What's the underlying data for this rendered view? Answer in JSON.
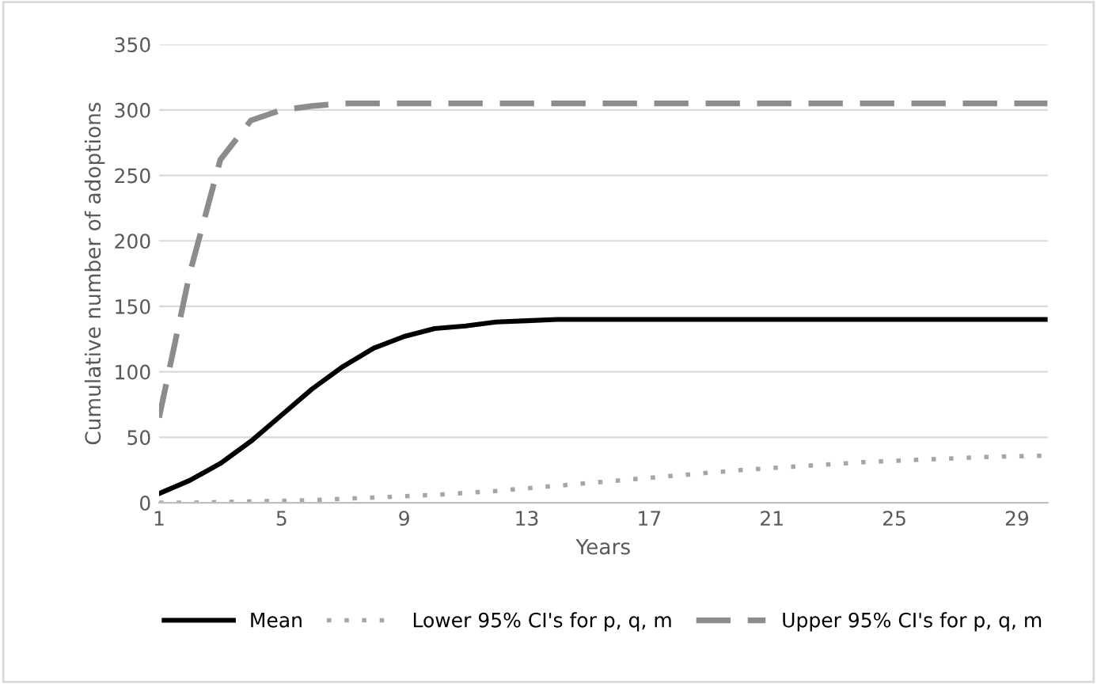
{
  "chart_data": {
    "type": "line",
    "xlabel": "Years",
    "ylabel": "Cumulative number of adoptions",
    "x": [
      1,
      2,
      3,
      4,
      5,
      6,
      7,
      8,
      9,
      10,
      11,
      12,
      13,
      14,
      15,
      16,
      17,
      18,
      19,
      20,
      21,
      22,
      23,
      24,
      25,
      26,
      27,
      28,
      29,
      30
    ],
    "xlim": [
      1,
      30
    ],
    "xticks": [
      1,
      5,
      9,
      13,
      17,
      21,
      25,
      29
    ],
    "ylim": [
      0,
      350
    ],
    "yticks": [
      0,
      50,
      100,
      150,
      200,
      250,
      300,
      350
    ],
    "grid": "y",
    "legend": "bottom",
    "marker": "none",
    "series": [
      {
        "name": "Mean",
        "color": "#000000",
        "line_style": "solid",
        "values": [
          7,
          17,
          30,
          47,
          67,
          87,
          104,
          118,
          127,
          133,
          135,
          138,
          139,
          140,
          140,
          140,
          140,
          140,
          140,
          140,
          140,
          140,
          140,
          140,
          140,
          140,
          140,
          140,
          140,
          140
        ]
      },
      {
        "name": "Lower 95% CI's for p, q, m",
        "color": "#a6a6a6",
        "line_style": "dotted",
        "values": [
          0,
          0,
          0.5,
          1,
          1.5,
          2,
          3,
          4,
          5,
          6,
          7.5,
          9,
          11,
          13,
          15,
          17,
          19,
          21,
          23,
          25,
          26.5,
          28,
          29.5,
          31,
          32,
          33,
          34,
          35,
          35.5,
          36
        ]
      },
      {
        "name": "Upper 95% CI's for p, q, m",
        "color": "#8c8c8c",
        "line_style": "dashed",
        "values": [
          65,
          175,
          262,
          292,
          300,
          303,
          305,
          305,
          305,
          305,
          305,
          305,
          305,
          305,
          305,
          305,
          305,
          305,
          305,
          305,
          305,
          305,
          305,
          305,
          305,
          305,
          305,
          305,
          305,
          305
        ]
      }
    ]
  }
}
